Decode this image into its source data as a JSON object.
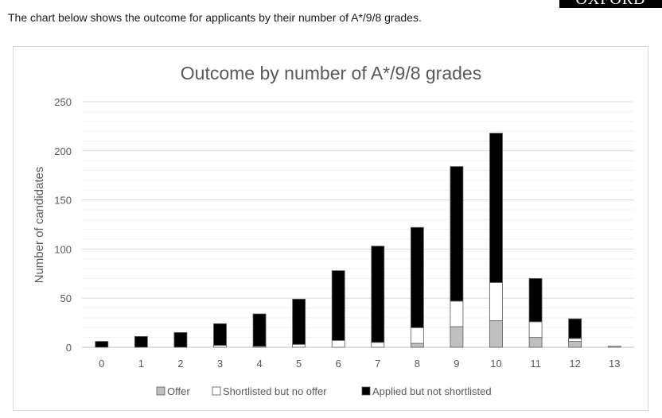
{
  "intro_text": "The chart below shows the outcome for applicants by their number of A*/9/8 grades.",
  "brand_label": "OXFORD",
  "chart_data": {
    "type": "bar",
    "stacked": true,
    "title": "Outcome by number of A*/9/8 grades",
    "xlabel": "",
    "ylabel": "Number of candidates",
    "categories": [
      "0",
      "1",
      "2",
      "3",
      "4",
      "5",
      "6",
      "7",
      "8",
      "9",
      "10",
      "11",
      "12",
      "13"
    ],
    "yticks": [
      "0",
      "50",
      "100",
      "150",
      "200",
      "250"
    ],
    "ylim": [
      0,
      250
    ],
    "grid": true,
    "legend_position": "bottom",
    "series": [
      {
        "name": "Offer",
        "color": "#bfbfbf",
        "values": [
          0,
          0,
          0,
          0,
          0,
          0,
          0,
          0,
          4,
          21,
          27,
          10,
          6,
          1
        ]
      },
      {
        "name": "Shortlisted but no offer",
        "color": "#ffffff",
        "values": [
          0,
          0,
          0,
          2,
          1,
          3,
          7,
          5,
          16,
          26,
          39,
          16,
          3,
          0
        ]
      },
      {
        "name": "Applied but not shortlisted",
        "color": "#000000",
        "values": [
          6,
          11,
          15,
          22,
          33,
          46,
          71,
          98,
          102,
          137,
          152,
          44,
          20,
          0
        ]
      }
    ]
  }
}
